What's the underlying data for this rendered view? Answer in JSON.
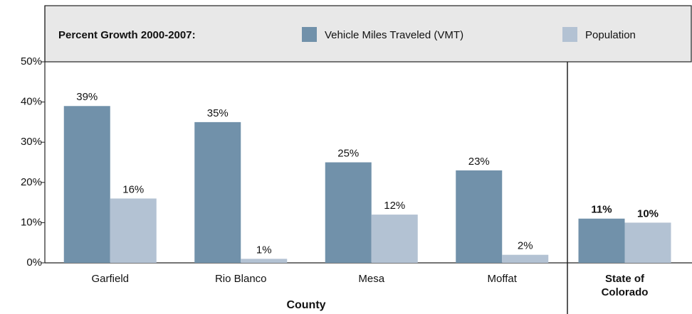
{
  "chart_data": {
    "type": "bar",
    "legend_title": "Percent Growth 2000-2007:",
    "x_label": "County",
    "categories": [
      "Garfield",
      "Rio Blanco",
      "Mesa",
      "Moffat",
      "State of Colorado"
    ],
    "series": [
      {
        "name": "Vehicle Miles Traveled (VMT)",
        "color": "#7191aa",
        "values": [
          39,
          35,
          25,
          23,
          11
        ],
        "value_labels": [
          "39%",
          "35%",
          "25%",
          "23%",
          "11%"
        ]
      },
      {
        "name": "Population",
        "color": "#b3c2d3",
        "values": [
          16,
          1,
          12,
          2,
          10
        ],
        "value_labels": [
          "16%",
          "1%",
          "12%",
          "2%",
          "10%"
        ]
      }
    ],
    "ylim": [
      0,
      50
    ],
    "yticks": [
      {
        "value": 0,
        "label": "0%"
      },
      {
        "value": 10,
        "label": "10%"
      },
      {
        "value": 20,
        "label": "20%"
      },
      {
        "value": 30,
        "label": "30%"
      },
      {
        "value": 40,
        "label": "40%"
      },
      {
        "value": 50,
        "label": "50%"
      }
    ],
    "legend": "top"
  }
}
